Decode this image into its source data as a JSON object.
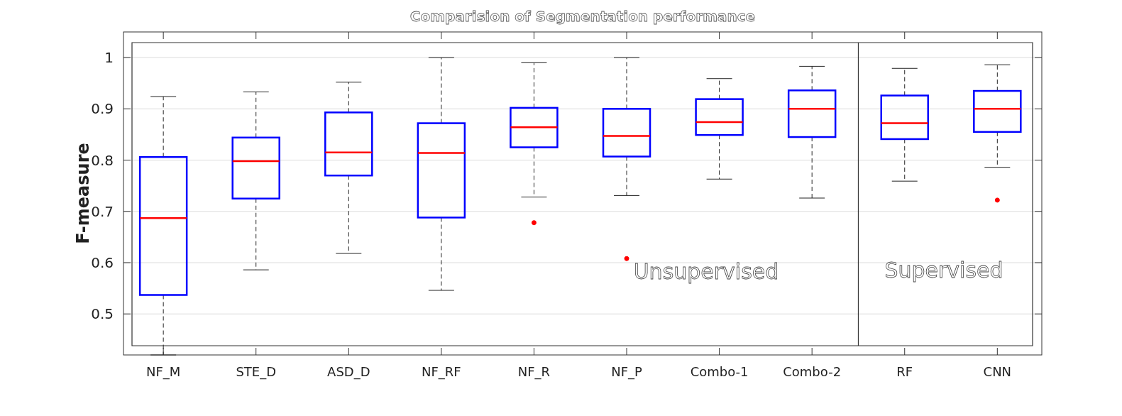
{
  "chart_data": {
    "type": "box",
    "title": "Comparision of Segmentation performance",
    "ylabel": "F-measure",
    "categories": [
      "NF_M",
      "STE_D",
      "ASD_D",
      "NF_RF",
      "NF_R",
      "NF_P",
      "Combo-1",
      "Combo-2",
      "RF",
      "CNN"
    ],
    "series": [
      {
        "color": "#0000ff",
        "boxes": [
          {
            "low": 0.42,
            "q1": 0.537,
            "median": 0.687,
            "q3": 0.806,
            "high": 0.924
          },
          {
            "low": 0.586,
            "q1": 0.725,
            "median": 0.798,
            "q3": 0.844,
            "high": 0.933
          },
          {
            "low": 0.618,
            "q1": 0.77,
            "median": 0.815,
            "q3": 0.893,
            "high": 0.952
          },
          {
            "low": 0.546,
            "q1": 0.688,
            "median": 0.814,
            "q3": 0.872,
            "high": 1.0
          },
          {
            "low": 0.728,
            "q1": 0.825,
            "median": 0.864,
            "q3": 0.902,
            "high": 0.99,
            "outliers": [
              0.678
            ]
          },
          {
            "low": 0.731,
            "q1": 0.807,
            "median": 0.847,
            "q3": 0.9,
            "high": 1.0,
            "outliers": [
              0.608
            ]
          },
          {
            "low": 0.763,
            "q1": 0.849,
            "median": 0.874,
            "q3": 0.919,
            "high": 0.959
          },
          {
            "low": 0.726,
            "q1": 0.845,
            "median": 0.9,
            "q3": 0.936,
            "high": 0.983
          },
          {
            "low": 0.759,
            "q1": 0.841,
            "median": 0.872,
            "q3": 0.926,
            "high": 0.979
          },
          {
            "low": 0.786,
            "q1": 0.855,
            "median": 0.9,
            "q3": 0.935,
            "high": 0.986,
            "outliers": [
              0.722
            ]
          }
        ]
      }
    ],
    "ylim": [
      0.42,
      1.05
    ],
    "yticks": [
      0.5,
      0.6,
      0.7,
      0.8,
      0.9,
      1
    ],
    "grid": "y",
    "annotations": [
      "Unsupervised",
      "Supervised"
    ]
  }
}
